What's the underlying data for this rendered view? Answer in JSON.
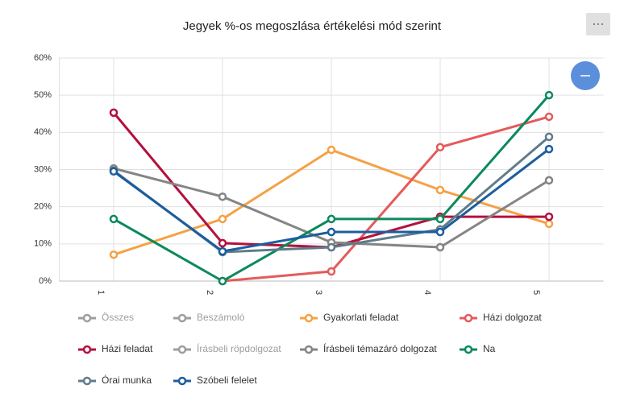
{
  "chart_data": {
    "type": "line",
    "title": "Jegyek %-os megoszlása értékelési mód szerint",
    "categories": [
      "1",
      "2",
      "3",
      "4",
      "5"
    ],
    "ylim": [
      0,
      60
    ],
    "yticks": [
      {
        "value": 0,
        "label": "0%"
      },
      {
        "value": 10,
        "label": "10%"
      },
      {
        "value": 20,
        "label": "20%"
      },
      {
        "value": 30,
        "label": "30%"
      },
      {
        "value": 40,
        "label": "40%"
      },
      {
        "value": 50,
        "label": "50%"
      },
      {
        "value": 60,
        "label": "60%"
      }
    ],
    "grid": true,
    "legend": "bottom",
    "series": [
      {
        "name": "Összes",
        "color": "#9e9e9e",
        "visible": false,
        "values": [
          null,
          null,
          null,
          null,
          null
        ]
      },
      {
        "name": "Beszámoló",
        "color": "#9e9e9e",
        "visible": false,
        "values": [
          null,
          null,
          null,
          null,
          null
        ]
      },
      {
        "name": "Gyakorlati feladat",
        "color": "#f5a145",
        "visible": true,
        "values": [
          7.1,
          16.7,
          35.3,
          24.5,
          15.4
        ]
      },
      {
        "name": "Házi dolgozat",
        "color": "#e55a5a",
        "visible": true,
        "values": [
          null,
          0,
          2.6,
          36,
          44.2
        ]
      },
      {
        "name": "Házi feladat",
        "color": "#b5103c",
        "visible": true,
        "values": [
          45.3,
          10.2,
          9.1,
          17.3,
          17.3
        ]
      },
      {
        "name": "Írásbeli röpdolgozat",
        "color": "#9e9e9e",
        "visible": false,
        "values": [
          null,
          null,
          null,
          null,
          null
        ]
      },
      {
        "name": "Írásbeli témazáró dolgozat",
        "color": "#858585",
        "visible": true,
        "values": [
          30.3,
          22.7,
          10.4,
          9.1,
          27.1
        ]
      },
      {
        "name": "Na",
        "color": "#0a8a5c",
        "visible": true,
        "values": [
          16.7,
          0,
          16.7,
          16.7,
          50
        ]
      },
      {
        "name": "Órai munka",
        "color": "#5f7c8a",
        "visible": true,
        "values": [
          29.7,
          7.8,
          9.1,
          13.9,
          38.8
        ]
      },
      {
        "name": "Szóbeli felelet",
        "color": "#1b5e9e",
        "visible": true,
        "values": [
          29.5,
          8,
          13.2,
          13.2,
          35.5
        ]
      }
    ]
  }
}
